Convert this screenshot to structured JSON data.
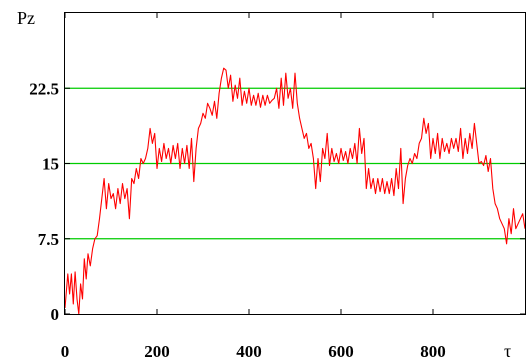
{
  "chart_data": {
    "type": "line",
    "ylabel": "Pz",
    "xlabel": "τ",
    "xlim": [
      0,
      1000
    ],
    "ylim": [
      0,
      30
    ],
    "x_ticks": [
      0,
      200,
      400,
      600,
      800
    ],
    "y_ticks": [
      0,
      7.5,
      15,
      22.5
    ],
    "x_tick_labels": [
      "0",
      "200",
      "400",
      "600",
      "800"
    ],
    "y_tick_labels": [
      "0",
      "7.5",
      "15",
      "22.5"
    ],
    "gridlines_y": [
      7.5,
      15,
      22.5
    ],
    "grid_color": "#00cc00",
    "series": [
      {
        "color": "#ff0000",
        "x": [
          0,
          6,
          10,
          14,
          18,
          22,
          26,
          30,
          34,
          38,
          42,
          46,
          50,
          55,
          60,
          65,
          70,
          75,
          80,
          85,
          90,
          95,
          100,
          105,
          110,
          115,
          120,
          125,
          130,
          135,
          140,
          145,
          150,
          155,
          160,
          165,
          170,
          175,
          180,
          185,
          190,
          195,
          200,
          205,
          210,
          215,
          220,
          225,
          230,
          235,
          240,
          245,
          250,
          255,
          260,
          265,
          270,
          275,
          280,
          285,
          290,
          295,
          300,
          305,
          310,
          315,
          320,
          325,
          330,
          335,
          340,
          345,
          350,
          355,
          360,
          365,
          370,
          375,
          380,
          385,
          390,
          395,
          400,
          405,
          410,
          415,
          420,
          425,
          430,
          435,
          440,
          445,
          450,
          455,
          460,
          465,
          470,
          475,
          480,
          485,
          490,
          495,
          500,
          505,
          510,
          515,
          520,
          525,
          530,
          535,
          540,
          545,
          550,
          555,
          560,
          565,
          570,
          575,
          580,
          585,
          590,
          595,
          600,
          605,
          610,
          615,
          620,
          625,
          630,
          635,
          640,
          645,
          650,
          655,
          660,
          665,
          670,
          675,
          680,
          685,
          690,
          695,
          700,
          705,
          710,
          715,
          720,
          725,
          730,
          735,
          740,
          745,
          750,
          755,
          760,
          765,
          770,
          775,
          780,
          785,
          790,
          795,
          800,
          805,
          810,
          815,
          820,
          825,
          830,
          835,
          840,
          845,
          850,
          855,
          860,
          865,
          870,
          875,
          880,
          885,
          890,
          895,
          900,
          905,
          910,
          915,
          920,
          925,
          930,
          935,
          940,
          945,
          950,
          955,
          960,
          965,
          970,
          975,
          980,
          985,
          990,
          995,
          1000
        ],
        "y": [
          0.6,
          4.0,
          2.0,
          4.0,
          1.0,
          4.2,
          1.5,
          0.0,
          3.0,
          1.5,
          5.5,
          3.5,
          6.0,
          4.8,
          6.5,
          7.5,
          7.8,
          9.5,
          11.5,
          13.5,
          10.5,
          13.0,
          11.5,
          12.0,
          10.5,
          12.5,
          11.0,
          13.0,
          11.5,
          12.5,
          9.5,
          13.5,
          13.0,
          14.5,
          13.5,
          15.5,
          15.0,
          15.5,
          16.5,
          18.5,
          17.0,
          18.0,
          14.5,
          16.5,
          15.2,
          17.0,
          15.5,
          16.5,
          15.0,
          16.8,
          15.5,
          17.0,
          14.5,
          16.5,
          15.0,
          16.8,
          14.5,
          17.5,
          13.2,
          16.5,
          18.5,
          19.0,
          20.0,
          19.5,
          21.0,
          20.5,
          19.8,
          21.2,
          19.5,
          22.0,
          23.5,
          24.5,
          24.3,
          22.5,
          23.8,
          21.2,
          22.8,
          21.5,
          23.5,
          20.8,
          22.2,
          21.0,
          22.5,
          20.8,
          21.8,
          20.8,
          22.0,
          20.6,
          21.8,
          20.8,
          21.8,
          21.0,
          21.3,
          21.5,
          22.5,
          20.5,
          23.5,
          20.8,
          24.0,
          21.5,
          22.5,
          20.5,
          24.0,
          21.0,
          19.5,
          18.5,
          17.5,
          18.0,
          16.5,
          17.0,
          15.5,
          12.5,
          15.5,
          13.2,
          16.5,
          15.5,
          18.0,
          14.8,
          16.5,
          15.2,
          16.0,
          15.0,
          16.5,
          15.3,
          16.2,
          15.0,
          16.5,
          15.5,
          17.0,
          15.0,
          18.5,
          16.0,
          17.5,
          12.5,
          14.5,
          12.5,
          13.5,
          12.0,
          13.5,
          12.2,
          13.5,
          12.0,
          13.2,
          12.0,
          13.5,
          11.8,
          14.5,
          12.5,
          16.5,
          11.0,
          13.5,
          14.8,
          15.5,
          15.0,
          16.0,
          15.5,
          17.0,
          17.5,
          19.5,
          18.0,
          19.0,
          15.5,
          17.5,
          16.0,
          18.0,
          15.5,
          17.5,
          16.2,
          17.0,
          16.0,
          17.5,
          16.5,
          17.5,
          16.2,
          18.5,
          15.5,
          17.5,
          16.0,
          18.0,
          16.5,
          19.0,
          17.0,
          15.0,
          15.2,
          14.8,
          15.8,
          14.2,
          15.5,
          12.5,
          11.0,
          10.5,
          9.5,
          9.0,
          8.5,
          7.0,
          9.5,
          8.0,
          10.5,
          8.5,
          9.0,
          9.5,
          10.0,
          8.5
        ]
      }
    ]
  }
}
